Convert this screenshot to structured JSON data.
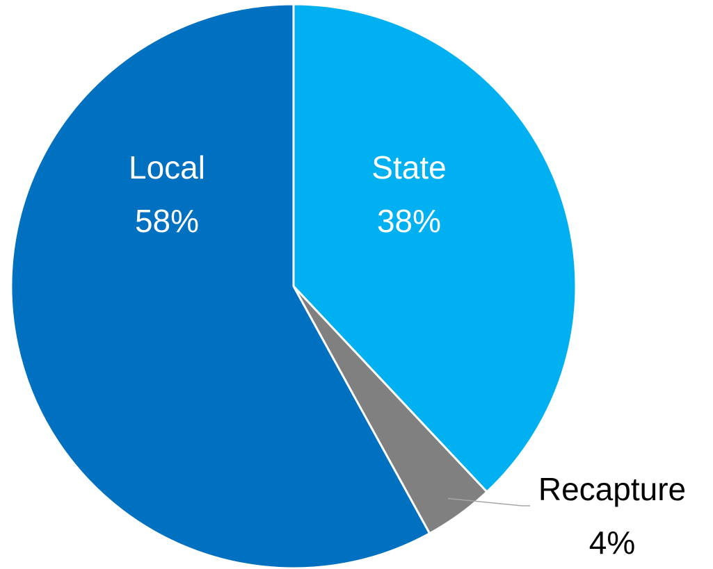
{
  "chart_data": {
    "type": "pie",
    "categories": [
      "State",
      "Recapture",
      "Local"
    ],
    "values": [
      38,
      4,
      58
    ],
    "value_labels": [
      "38%",
      "4%",
      "58%"
    ],
    "colors": [
      "#00b0f0",
      "#808080",
      "#0070c0"
    ]
  }
}
